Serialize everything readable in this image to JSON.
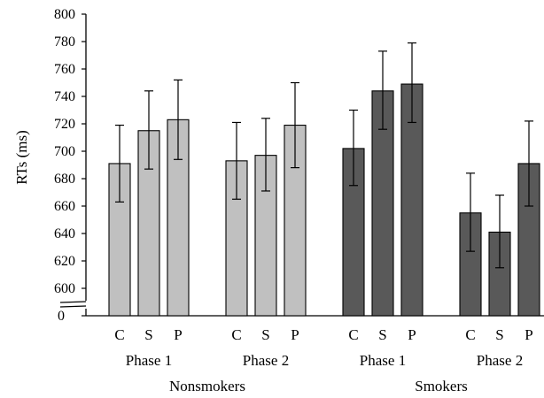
{
  "chart_data": {
    "type": "bar",
    "ylabel": "RTs (ms)",
    "ylim": [
      590,
      800
    ],
    "axis_break": true,
    "axis_break_baseline": "0",
    "yticks": [
      600,
      620,
      640,
      660,
      680,
      700,
      720,
      740,
      760,
      780,
      800
    ],
    "categories": [
      "C",
      "S",
      "P"
    ],
    "groups": [
      {
        "group": "Nonsmokers",
        "phase": "Phase 1",
        "values": [
          691,
          715,
          723
        ],
        "err_low": [
          663,
          687,
          694
        ],
        "err_high": [
          719,
          744,
          752
        ],
        "color": "#c0c0c0"
      },
      {
        "group": "Nonsmokers",
        "phase": "Phase 2",
        "values": [
          693,
          697,
          719
        ],
        "err_low": [
          665,
          671,
          688
        ],
        "err_high": [
          721,
          724,
          750
        ],
        "color": "#c0c0c0"
      },
      {
        "group": "Smokers",
        "phase": "Phase 1",
        "values": [
          702,
          744,
          749
        ],
        "err_low": [
          675,
          716,
          721
        ],
        "err_high": [
          730,
          773,
          779
        ],
        "color": "#595959"
      },
      {
        "group": "Smokers",
        "phase": "Phase 2",
        "values": [
          655,
          641,
          691
        ],
        "err_low": [
          627,
          615,
          660
        ],
        "err_high": [
          684,
          668,
          722
        ],
        "color": "#595959"
      }
    ],
    "group_labels": [
      "Nonsmokers",
      "Smokers"
    ],
    "grid": false,
    "legend": "none"
  }
}
